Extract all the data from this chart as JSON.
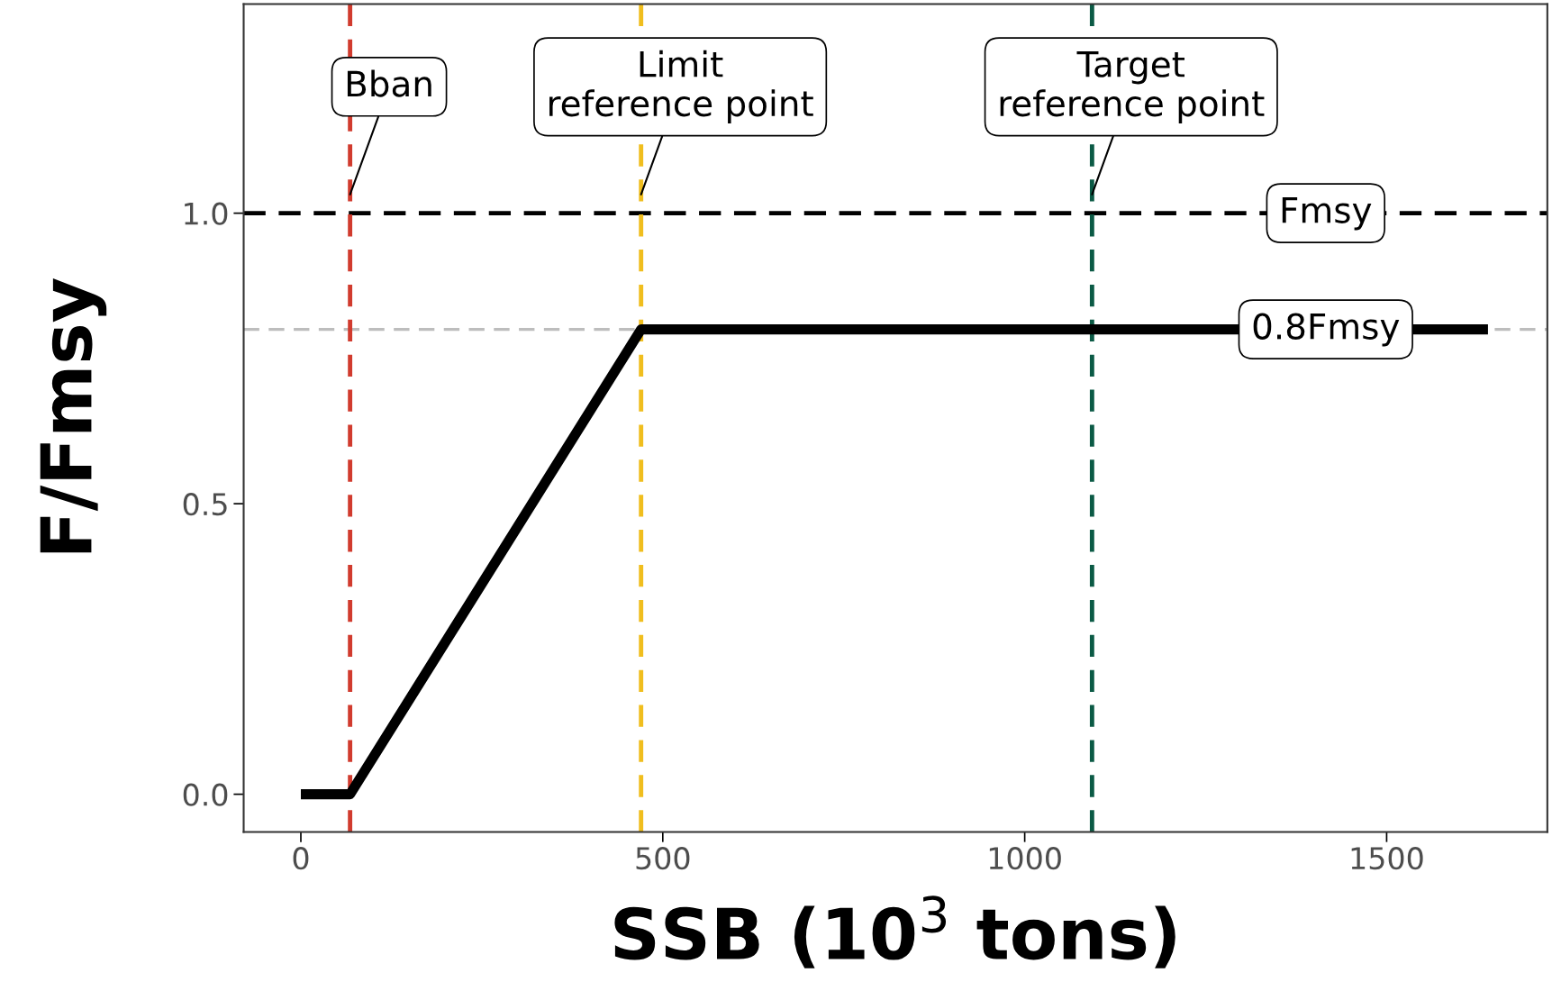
{
  "chart_data": {
    "type": "line",
    "xlabel": "SSB (10$^{3}$ tons)",
    "ylabel": "F/Fmsy",
    "x": [
      0,
      68,
      470,
      1640
    ],
    "series": [
      {
        "color": "#000000",
        "values": [
          0,
          0,
          0.8,
          0.8
        ]
      }
    ],
    "xlim": [
      -79,
      1722
    ],
    "ylim": [
      -0.065,
      1.36
    ],
    "xticks": [
      0,
      500,
      1000,
      1500
    ],
    "yticks": [
      {
        "value": 0,
        "label": "0.0"
      },
      {
        "value": 0.5,
        "label": "0.5"
      },
      {
        "value": 1,
        "label": "1.0"
      }
    ],
    "grid": false,
    "marker": "none",
    "line_style": "solid",
    "ref_lines": [
      {
        "axis": "y",
        "value": 1,
        "label": "Fmsy",
        "color": "#000000",
        "line_style": "dashed"
      },
      {
        "axis": "y",
        "value": 0.8,
        "label": "0.8Fmsy",
        "color": "#bdbdbd",
        "line_style": "dashed"
      },
      {
        "axis": "x",
        "value": 68,
        "label": "Bban",
        "color": "#d13b2e",
        "line_style": "dashed"
      },
      {
        "axis": "x",
        "value": 470,
        "label": "Limit\nreference point",
        "color": "#f0be1e",
        "line_style": "dashed"
      },
      {
        "axis": "x",
        "value": 1093,
        "label": "Target\nreference point",
        "color": "#0b5a45",
        "line_style": "dashed"
      }
    ]
  }
}
